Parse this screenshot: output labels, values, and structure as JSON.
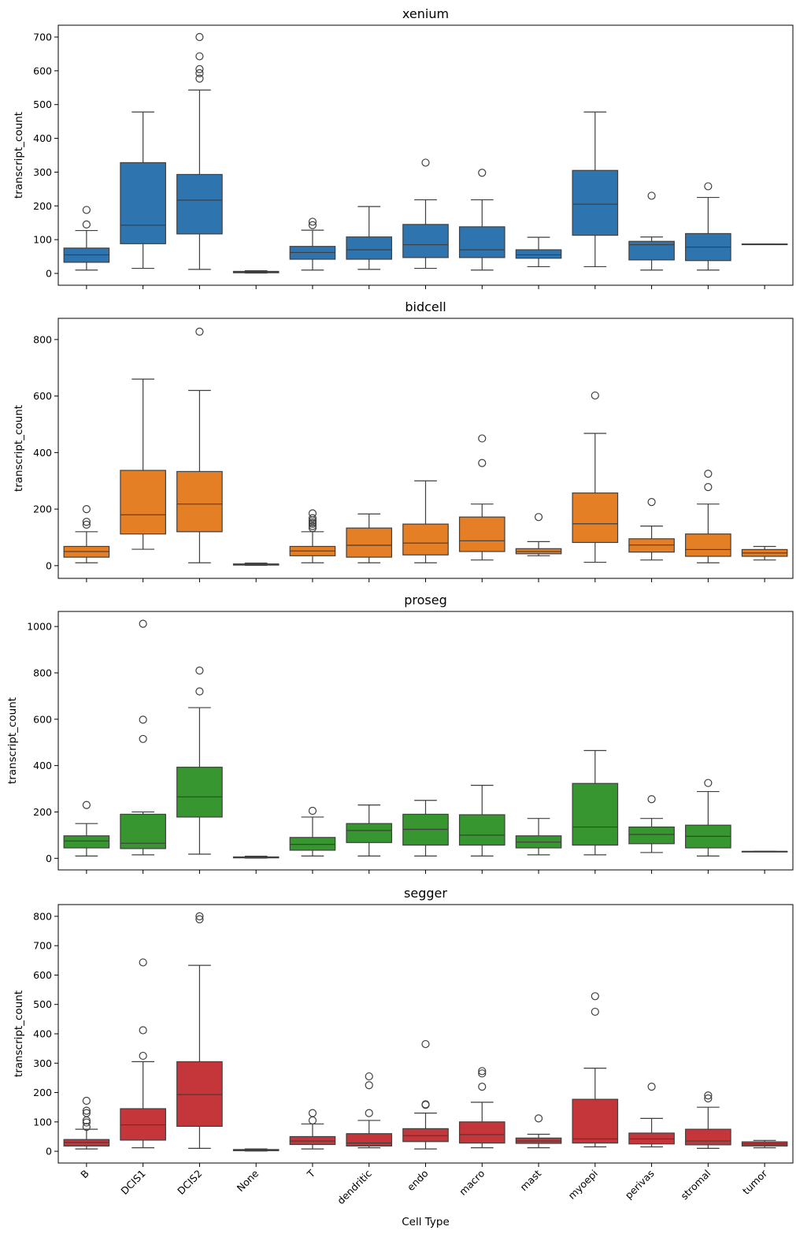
{
  "chart_data": {
    "type": "box",
    "xlabel": "Cell Type",
    "categories": [
      "B",
      "DCIS1",
      "DCIS2",
      "None",
      "T",
      "dendritic",
      "endo",
      "macro",
      "mast",
      "myoepi",
      "perivas",
      "stromal",
      "tumor"
    ],
    "panels": [
      {
        "title": "xenium",
        "ylabel": "transcript_count",
        "color": "#2e75b0",
        "ylim": [
          -35,
          735
        ],
        "yticks": [
          0,
          100,
          200,
          300,
          400,
          500,
          600,
          700
        ],
        "boxes": [
          {
            "whislo": 10,
            "q1": 33,
            "med": 55,
            "q3": 75,
            "whishi": 127,
            "fliers": [
              145,
              188
            ]
          },
          {
            "whislo": 15,
            "q1": 88,
            "med": 143,
            "q3": 328,
            "whishi": 478,
            "fliers": []
          },
          {
            "whislo": 12,
            "q1": 117,
            "med": 217,
            "q3": 293,
            "whishi": 543,
            "fliers": [
              577,
              593,
              605,
              643,
              700
            ]
          },
          {
            "whislo": 1,
            "q1": 2,
            "med": 4,
            "q3": 6,
            "whishi": 8,
            "fliers": []
          },
          {
            "whislo": 10,
            "q1": 42,
            "med": 62,
            "q3": 80,
            "whishi": 128,
            "fliers": [
              143,
              153
            ]
          },
          {
            "whislo": 12,
            "q1": 42,
            "med": 70,
            "q3": 108,
            "whishi": 198,
            "fliers": []
          },
          {
            "whislo": 15,
            "q1": 47,
            "med": 85,
            "q3": 145,
            "whishi": 218,
            "fliers": [
              328
            ]
          },
          {
            "whislo": 10,
            "q1": 47,
            "med": 70,
            "q3": 138,
            "whishi": 218,
            "fliers": [
              298
            ]
          },
          {
            "whislo": 20,
            "q1": 45,
            "med": 55,
            "q3": 70,
            "whishi": 107,
            "fliers": []
          },
          {
            "whislo": 20,
            "q1": 113,
            "med": 205,
            "q3": 305,
            "whishi": 478,
            "fliers": []
          },
          {
            "whislo": 10,
            "q1": 40,
            "med": 85,
            "q3": 95,
            "whishi": 108,
            "fliers": [
              230
            ]
          },
          {
            "whislo": 10,
            "q1": 38,
            "med": 78,
            "q3": 118,
            "whishi": 225,
            "fliers": [
              258
            ]
          },
          {
            "whislo": 87,
            "q1": 87,
            "med": 87,
            "q3": 87,
            "whishi": 87,
            "fliers": []
          }
        ]
      },
      {
        "title": "bidcell",
        "ylabel": "transcript_count",
        "color": "#e57f26",
        "ylim": [
          -45,
          875
        ],
        "yticks": [
          0,
          200,
          400,
          600,
          800
        ],
        "boxes": [
          {
            "whislo": 10,
            "q1": 30,
            "med": 50,
            "q3": 68,
            "whishi": 120,
            "fliers": [
              145,
              155,
              200
            ]
          },
          {
            "whislo": 58,
            "q1": 112,
            "med": 180,
            "q3": 337,
            "whishi": 660,
            "fliers": []
          },
          {
            "whislo": 10,
            "q1": 120,
            "med": 218,
            "q3": 333,
            "whishi": 620,
            "fliers": [
              828
            ]
          },
          {
            "whislo": 1,
            "q1": 2,
            "med": 4,
            "q3": 6,
            "whishi": 9,
            "fliers": []
          },
          {
            "whislo": 10,
            "q1": 35,
            "med": 52,
            "q3": 68,
            "whishi": 120,
            "fliers": [
              133,
              140,
              148,
              153,
              160,
              168,
              185
            ]
          },
          {
            "whislo": 10,
            "q1": 30,
            "med": 72,
            "q3": 133,
            "whishi": 183,
            "fliers": []
          },
          {
            "whislo": 10,
            "q1": 38,
            "med": 80,
            "q3": 147,
            "whishi": 300,
            "fliers": []
          },
          {
            "whislo": 20,
            "q1": 50,
            "med": 88,
            "q3": 172,
            "whishi": 218,
            "fliers": [
              363,
              450
            ]
          },
          {
            "whislo": 35,
            "q1": 42,
            "med": 50,
            "q3": 60,
            "whishi": 85,
            "fliers": [
              172
            ]
          },
          {
            "whislo": 12,
            "q1": 82,
            "med": 148,
            "q3": 257,
            "whishi": 468,
            "fliers": [
              602
            ]
          },
          {
            "whislo": 20,
            "q1": 48,
            "med": 73,
            "q3": 95,
            "whishi": 140,
            "fliers": [
              225
            ]
          },
          {
            "whislo": 10,
            "q1": 33,
            "med": 57,
            "q3": 112,
            "whishi": 218,
            "fliers": [
              278,
              325
            ]
          },
          {
            "whislo": 20,
            "q1": 33,
            "med": 45,
            "q3": 57,
            "whishi": 68,
            "fliers": []
          }
        ]
      },
      {
        "title": "proseg",
        "ylabel": "transcript_count",
        "color": "#37962f",
        "ylim": [
          -50,
          1065
        ],
        "yticks": [
          0,
          200,
          400,
          600,
          800,
          1000
        ],
        "boxes": [
          {
            "whislo": 10,
            "q1": 45,
            "med": 75,
            "q3": 97,
            "whishi": 150,
            "fliers": [
              230
            ]
          },
          {
            "whislo": 15,
            "q1": 42,
            "med": 65,
            "q3": 190,
            "whishi": 200,
            "fliers": [
              515,
              598,
              1012
            ]
          },
          {
            "whislo": 18,
            "q1": 178,
            "med": 265,
            "q3": 393,
            "whishi": 650,
            "fliers": [
              720,
              810
            ]
          },
          {
            "whislo": 1,
            "q1": 2,
            "med": 4,
            "q3": 6,
            "whishi": 9,
            "fliers": []
          },
          {
            "whislo": 10,
            "q1": 35,
            "med": 60,
            "q3": 90,
            "whishi": 178,
            "fliers": [
              205
            ]
          },
          {
            "whislo": 10,
            "q1": 68,
            "med": 120,
            "q3": 150,
            "whishi": 230,
            "fliers": []
          },
          {
            "whislo": 10,
            "q1": 57,
            "med": 125,
            "q3": 190,
            "whishi": 250,
            "fliers": []
          },
          {
            "whislo": 10,
            "q1": 57,
            "med": 100,
            "q3": 188,
            "whishi": 315,
            "fliers": []
          },
          {
            "whislo": 15,
            "q1": 45,
            "med": 70,
            "q3": 97,
            "whishi": 172,
            "fliers": []
          },
          {
            "whislo": 15,
            "q1": 57,
            "med": 135,
            "q3": 323,
            "whishi": 465,
            "fliers": []
          },
          {
            "whislo": 25,
            "q1": 63,
            "med": 103,
            "q3": 135,
            "whishi": 172,
            "fliers": [
              255
            ]
          },
          {
            "whislo": 10,
            "q1": 45,
            "med": 95,
            "q3": 143,
            "whishi": 288,
            "fliers": [
              325
            ]
          },
          {
            "whislo": 30,
            "q1": 30,
            "med": 30,
            "q3": 30,
            "whishi": 30,
            "fliers": []
          }
        ]
      },
      {
        "title": "segger",
        "ylabel": "transcript_count",
        "color": "#c4363a",
        "ylim": [
          -40,
          840
        ],
        "yticks": [
          0,
          100,
          200,
          300,
          400,
          500,
          600,
          700,
          800
        ],
        "boxes": [
          {
            "whislo": 8,
            "q1": 18,
            "med": 30,
            "q3": 40,
            "whishi": 75,
            "fliers": [
              83,
              98,
              105,
              130,
              138,
              172
            ]
          },
          {
            "whislo": 12,
            "q1": 38,
            "med": 90,
            "q3": 145,
            "whishi": 305,
            "fliers": [
              325,
              412,
              643
            ]
          },
          {
            "whislo": 10,
            "q1": 85,
            "med": 193,
            "q3": 305,
            "whishi": 633,
            "fliers": [
              790,
              800
            ]
          },
          {
            "whislo": 1,
            "q1": 2,
            "med": 4,
            "q3": 6,
            "whishi": 8,
            "fliers": []
          },
          {
            "whislo": 8,
            "q1": 23,
            "med": 35,
            "q3": 50,
            "whishi": 93,
            "fliers": [
              105,
              130
            ]
          },
          {
            "whislo": 12,
            "q1": 18,
            "med": 28,
            "q3": 60,
            "whishi": 105,
            "fliers": [
              130,
              225,
              255
            ]
          },
          {
            "whislo": 8,
            "q1": 33,
            "med": 53,
            "q3": 77,
            "whishi": 130,
            "fliers": [
              158,
              160,
              365
            ]
          },
          {
            "whislo": 12,
            "q1": 28,
            "med": 57,
            "q3": 100,
            "whishi": 167,
            "fliers": [
              220,
              265,
              273
            ]
          },
          {
            "whislo": 12,
            "q1": 27,
            "med": 35,
            "q3": 45,
            "whishi": 58,
            "fliers": [
              112
            ]
          },
          {
            "whislo": 15,
            "q1": 28,
            "med": 42,
            "q3": 177,
            "whishi": 283,
            "fliers": [
              475,
              528
            ]
          },
          {
            "whislo": 15,
            "q1": 25,
            "med": 42,
            "q3": 62,
            "whishi": 112,
            "fliers": [
              220
            ]
          },
          {
            "whislo": 10,
            "q1": 22,
            "med": 35,
            "q3": 75,
            "whishi": 150,
            "fliers": [
              180,
              190
            ]
          },
          {
            "whislo": 12,
            "q1": 18,
            "med": 25,
            "q3": 32,
            "whishi": 37,
            "fliers": []
          }
        ]
      }
    ]
  }
}
